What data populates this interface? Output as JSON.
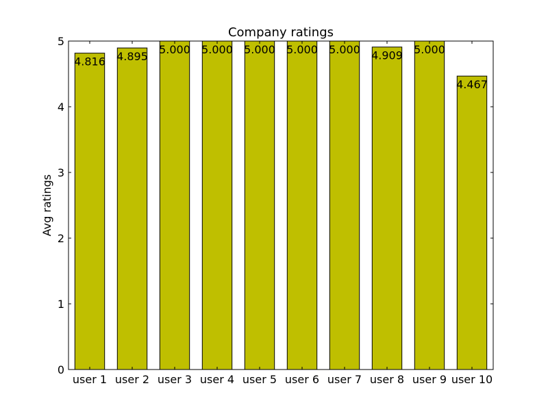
{
  "chart_data": {
    "type": "bar",
    "title": "Company ratings",
    "xlabel": "",
    "ylabel": "Avg ratings",
    "categories": [
      "user 1",
      "user 2",
      "user 3",
      "user 4",
      "user 5",
      "user 6",
      "user 7",
      "user 8",
      "user 9",
      "user 10"
    ],
    "values": [
      4.816,
      4.895,
      5.0,
      5.0,
      5.0,
      5.0,
      5.0,
      4.909,
      5.0,
      4.467
    ],
    "data_labels": [
      "4.816",
      "4.895",
      "5.000",
      "5.000",
      "5.000",
      "5.000",
      "5.000",
      "4.909",
      "5.000",
      "4.467"
    ],
    "ylim": [
      0,
      5
    ],
    "yticks": [
      0,
      1,
      2,
      3,
      4,
      5
    ],
    "ytick_labels": [
      "0",
      "1",
      "2",
      "3",
      "4",
      "5"
    ],
    "bar_color": "#bfbf00",
    "edge_color": "#000000",
    "grid": false,
    "legend": "none"
  }
}
